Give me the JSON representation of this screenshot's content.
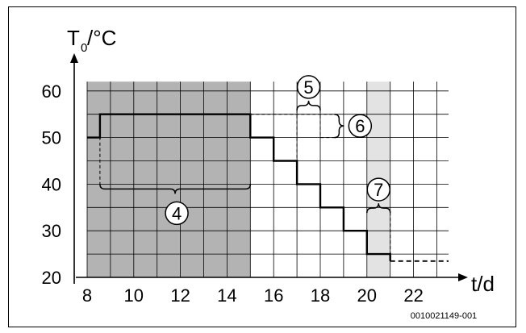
{
  "chart_data": {
    "type": "line",
    "ylabel_main": "T",
    "ylabel_sub": "0",
    "ylabel_unit": "/°C",
    "xlabel": "t/d",
    "figure_code": "0010021149-001",
    "x_ticks": [
      8,
      10,
      12,
      14,
      16,
      18,
      20,
      22
    ],
    "y_ticks": [
      20,
      30,
      40,
      50,
      60
    ],
    "xlim": [
      8,
      23.5
    ],
    "ylim": [
      20,
      62
    ],
    "grid": true,
    "shaded_regions": [
      {
        "x": [
          8,
          15
        ],
        "color": "#b3b3b3"
      },
      {
        "x": [
          20,
          21
        ],
        "color": "#e3e3e3"
      }
    ],
    "series": [
      {
        "style": "solid",
        "x": [
          8,
          8.55,
          8.55,
          15,
          15,
          16,
          16,
          17,
          17,
          18,
          18,
          19,
          19,
          20,
          20,
          21,
          21
        ],
        "y": [
          50,
          50,
          55,
          55,
          50,
          50,
          45,
          45,
          40,
          40,
          35,
          35,
          30,
          30,
          25,
          25,
          23.5
        ]
      },
      {
        "style": "dashed",
        "x": [
          21,
          23.5
        ],
        "y": [
          23.5,
          23.5
        ]
      }
    ],
    "annotations": [
      {
        "label": "4",
        "type": "bracket",
        "x": [
          8.55,
          15
        ],
        "y": 40
      },
      {
        "label": "5",
        "type": "bracket",
        "x": [
          17,
          18
        ],
        "y": 56
      },
      {
        "label": "6",
        "type": "bracket",
        "x": 18.6,
        "y": [
          50,
          55
        ]
      },
      {
        "label": "7",
        "type": "bracket",
        "x": [
          20,
          21
        ],
        "y": 34
      }
    ]
  }
}
